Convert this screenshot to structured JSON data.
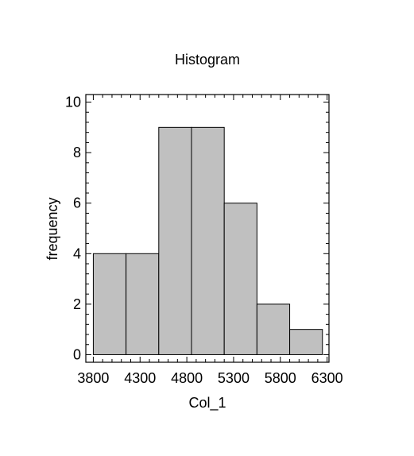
{
  "chart_data": {
    "type": "bar",
    "title": "Histogram",
    "xlabel": "Col_1",
    "ylabel": "frequency",
    "bins": [
      {
        "x0": 3800,
        "x1": 4150,
        "count": 4
      },
      {
        "x0": 4150,
        "x1": 4500,
        "count": 4
      },
      {
        "x0": 4500,
        "x1": 4850,
        "count": 9
      },
      {
        "x0": 4850,
        "x1": 5200,
        "count": 9
      },
      {
        "x0": 5200,
        "x1": 5550,
        "count": 6
      },
      {
        "x0": 5550,
        "x1": 5900,
        "count": 2
      },
      {
        "x0": 5900,
        "x1": 6250,
        "count": 1
      }
    ],
    "xlim": [
      3720,
      6320
    ],
    "ylim": [
      -0.3,
      10.3
    ],
    "xticks": [
      3800,
      4300,
      4800,
      5300,
      5800,
      6300
    ],
    "yticks": [
      0,
      2,
      4,
      6,
      8,
      10
    ],
    "grid": false,
    "colors": {
      "bar": "#c0c0c0",
      "edge": "#000000"
    }
  }
}
